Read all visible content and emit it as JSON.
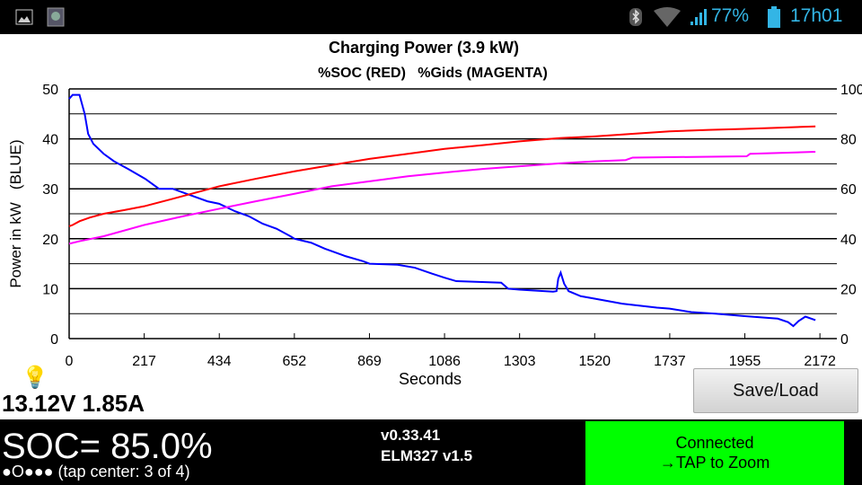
{
  "status_bar": {
    "battery": "77%",
    "time": "17h01",
    "accent": "#33b5e5"
  },
  "chart_data": {
    "type": "line",
    "title": "Charging Power (3.9 kW)",
    "subtitle": "%SOC (RED)   %Gids (MAGENTA)",
    "xlabel": "Seconds",
    "ylabel": "Power in kW   (BLUE)",
    "xlim": [
      0,
      2221
    ],
    "ylim": [
      0,
      50
    ],
    "y2lim": [
      0,
      100
    ],
    "xticks": [
      "0",
      "217",
      "434",
      "652",
      "869",
      "1086",
      "1303",
      "1520",
      "1737",
      "1955",
      "2172"
    ],
    "yticks": [
      "0",
      "10",
      "20",
      "30",
      "40",
      "50"
    ],
    "y2ticks": [
      "0",
      "20",
      "40",
      "60",
      "80",
      "100"
    ],
    "grid": true,
    "series": [
      {
        "name": "Power kW",
        "color": "#0000ff",
        "axis": "left",
        "points": [
          [
            0,
            48
          ],
          [
            10,
            48.8
          ],
          [
            30,
            48.8
          ],
          [
            45,
            45
          ],
          [
            55,
            41
          ],
          [
            70,
            39
          ],
          [
            100,
            37
          ],
          [
            130,
            35.5
          ],
          [
            170,
            34
          ],
          [
            220,
            32
          ],
          [
            260,
            30
          ],
          [
            300,
            30
          ],
          [
            340,
            29
          ],
          [
            400,
            27.5
          ],
          [
            434,
            27
          ],
          [
            480,
            25.5
          ],
          [
            520,
            24.5
          ],
          [
            560,
            23
          ],
          [
            600,
            22
          ],
          [
            640,
            20.5
          ],
          [
            652,
            20
          ],
          [
            700,
            19.2
          ],
          [
            740,
            18
          ],
          [
            760,
            17.5
          ],
          [
            800,
            16.5
          ],
          [
            850,
            15.5
          ],
          [
            869,
            15
          ],
          [
            950,
            14.8
          ],
          [
            1000,
            14.2
          ],
          [
            1050,
            13
          ],
          [
            1086,
            12.2
          ],
          [
            1120,
            11.5
          ],
          [
            1250,
            11.2
          ],
          [
            1270,
            10
          ],
          [
            1303,
            9.8
          ],
          [
            1400,
            9.4
          ],
          [
            1410,
            9.5
          ],
          [
            1415,
            12
          ],
          [
            1422,
            13.2
          ],
          [
            1432,
            11
          ],
          [
            1445,
            9.5
          ],
          [
            1480,
            8.5
          ],
          [
            1520,
            8
          ],
          [
            1600,
            7
          ],
          [
            1700,
            6.2
          ],
          [
            1737,
            6
          ],
          [
            1800,
            5.3
          ],
          [
            1870,
            5
          ],
          [
            1955,
            4.5
          ],
          [
            2050,
            4
          ],
          [
            2080,
            3.3
          ],
          [
            2095,
            2.5
          ],
          [
            2110,
            3.5
          ],
          [
            2130,
            4.4
          ],
          [
            2159,
            3.7
          ]
        ]
      },
      {
        "name": "%SOC",
        "color": "#ff0000",
        "axis": "right",
        "points": [
          [
            0,
            45
          ],
          [
            10,
            45.5
          ],
          [
            30,
            47
          ],
          [
            60,
            48.5
          ],
          [
            100,
            50
          ],
          [
            160,
            51.5
          ],
          [
            217,
            53
          ],
          [
            300,
            56
          ],
          [
            434,
            61
          ],
          [
            540,
            64
          ],
          [
            652,
            67
          ],
          [
            760,
            69.5
          ],
          [
            869,
            72
          ],
          [
            980,
            74
          ],
          [
            1086,
            76
          ],
          [
            1200,
            77.5
          ],
          [
            1303,
            79
          ],
          [
            1420,
            80.3
          ],
          [
            1520,
            81
          ],
          [
            1630,
            82
          ],
          [
            1737,
            83
          ],
          [
            1850,
            83.6
          ],
          [
            1955,
            84
          ],
          [
            2060,
            84.5
          ],
          [
            2159,
            85
          ]
        ]
      },
      {
        "name": "%Gids",
        "color": "#ff00ff",
        "axis": "right",
        "points": [
          [
            0,
            38
          ],
          [
            30,
            39
          ],
          [
            100,
            41
          ],
          [
            217,
            45.5
          ],
          [
            330,
            49
          ],
          [
            434,
            52
          ],
          [
            540,
            55
          ],
          [
            652,
            58
          ],
          [
            760,
            61
          ],
          [
            869,
            63
          ],
          [
            980,
            65
          ],
          [
            1086,
            66.5
          ],
          [
            1200,
            68
          ],
          [
            1303,
            69
          ],
          [
            1420,
            70.2
          ],
          [
            1520,
            71
          ],
          [
            1610,
            71.5
          ],
          [
            1630,
            72.5
          ],
          [
            1960,
            73
          ],
          [
            1970,
            74
          ],
          [
            2159,
            74.8
          ]
        ]
      }
    ]
  },
  "footer": {
    "voltage_current": "13.12V 1.85A",
    "save_load": "Save/Load",
    "soc": "SOC= 85.0%",
    "page_indicator": "●O●●● (tap center: 3 of 4)",
    "version": "v0.33.41",
    "elm": "ELM327 v1.5",
    "connected": "Connected",
    "tap_zoom": "→TAP to Zoom"
  }
}
